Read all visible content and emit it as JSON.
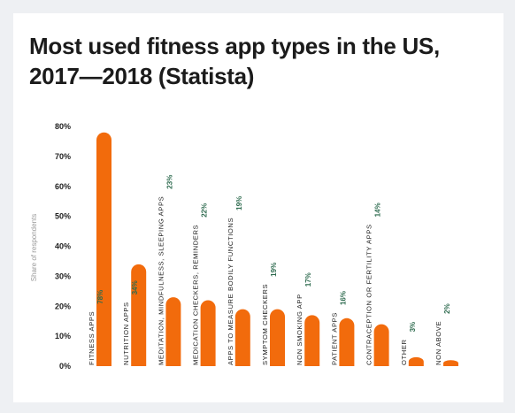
{
  "chart_data": {
    "type": "bar",
    "title": "Most used fitness app types in the US, 2017—2018 (Statista)",
    "ylabel": "Share of respondents",
    "ylim": [
      0,
      80
    ],
    "yticks": [
      "0%",
      "10%",
      "20%",
      "30%",
      "40%",
      "50%",
      "60%",
      "70%",
      "80%"
    ],
    "bar_color": "#f26b0c",
    "categories": [
      "FITNESS APPS",
      "NUTRITION APPS",
      "MEDITATION, MINDFULNESS, SLEEPING APPS",
      "MEDICATION CHECKERS, REMINDERS",
      "APPS TO MEASURE BODILY FUNCTIONS",
      "SYMPTOM CHECKERS",
      "NON SMOKING APP",
      "PATIENT APPS",
      "CONTRACEPTION OR FERTILITY APPS",
      "OTHER",
      "NON ABOVE"
    ],
    "values": [
      78,
      34,
      23,
      22,
      19,
      19,
      17,
      16,
      14,
      3,
      2
    ],
    "value_labels": [
      "78%",
      "34%",
      "23%",
      "22%",
      "19%",
      "19%",
      "17%",
      "16%",
      "14%",
      "3%",
      "2%"
    ]
  }
}
